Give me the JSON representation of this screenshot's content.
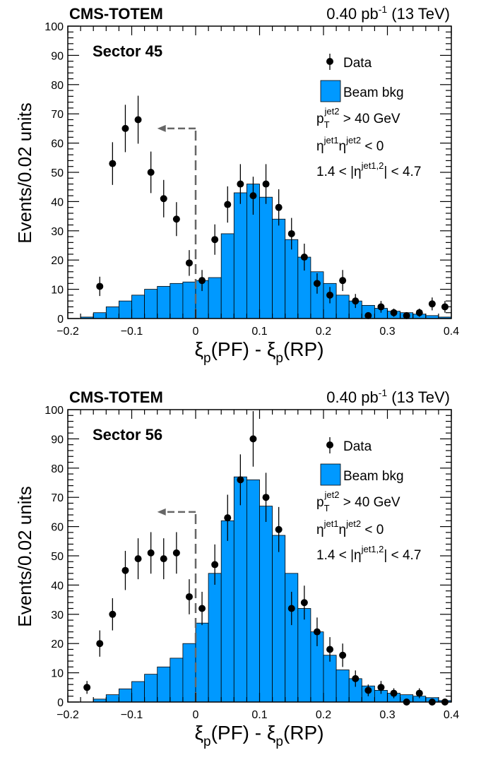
{
  "chart_data": [
    {
      "type": "bar",
      "experiment": "CMS-TOTEM",
      "lumi": "0.40 pb",
      "lumi_exp": "-1",
      "energy": "(13 TeV)",
      "sector": "Sector 45",
      "ylabel": "Events/0.02 units",
      "xlabel": {
        "xi": "ξ",
        "sub": "p",
        "pf": "(PF) - ",
        "rp": "(RP)"
      },
      "xlim": [
        -0.2,
        0.4
      ],
      "ylim": [
        0,
        100
      ],
      "x_ticks": [
        -0.2,
        -0.1,
        0,
        0.1,
        0.2,
        0.3,
        0.4
      ],
      "x_tick_labels": [
        "−0.2",
        "−0.1",
        "0",
        "0.1",
        "0.2",
        "0.3",
        "0.4"
      ],
      "y_ticks": [
        0,
        10,
        20,
        30,
        40,
        50,
        60,
        70,
        80,
        90,
        100
      ],
      "y_tick_labels": [
        "0",
        "10",
        "20",
        "30",
        "40",
        "50",
        "60",
        "70",
        "80",
        "90",
        "100"
      ],
      "legend": {
        "data": "Data",
        "bkg": "Beam bkg",
        "placement": "top-right"
      },
      "cuts": {
        "c1_base": "p",
        "c1_sub": "T",
        "c1_sup": "jet2",
        "c1_rest": " > 40 GeV",
        "c2_a": "η",
        "c2_sup1": "jet1",
        "c2_b": "η",
        "c2_sup2": "jet2",
        "c2_rest": " < 0",
        "c3_a": "1.4 < |η",
        "c3_sup": "jet1,2",
        "c3_rest": "| < 4.7"
      },
      "cut_line": 0.0,
      "arrow_to": -0.06,
      "arrow_height": 65,
      "colors": {
        "bkg": "#0099ff",
        "data": "#000000",
        "line": "#666666"
      },
      "bkg_bin_edges": [
        -0.2,
        -0.18,
        -0.16,
        -0.14,
        -0.12,
        -0.1,
        -0.08,
        -0.06,
        -0.04,
        -0.02,
        0.0,
        0.02,
        0.04,
        0.06,
        0.08,
        0.1,
        0.12,
        0.14,
        0.16,
        0.18,
        0.2,
        0.22,
        0.24,
        0.26,
        0.28,
        0.3,
        0.32,
        0.34,
        0.36,
        0.38,
        0.4
      ],
      "bkg_values": [
        0,
        0.5,
        2,
        4,
        6,
        8,
        10,
        11,
        12,
        12.5,
        13,
        14,
        29,
        43,
        46,
        41.5,
        34,
        27,
        21,
        16,
        12,
        8,
        6,
        4.5,
        3.5,
        2.5,
        2,
        1.5,
        1,
        0.5
      ],
      "data_x": [
        -0.15,
        -0.13,
        -0.11,
        -0.09,
        -0.07,
        -0.05,
        -0.03,
        -0.01,
        0.01,
        0.03,
        0.05,
        0.07,
        0.09,
        0.11,
        0.13,
        0.15,
        0.17,
        0.19,
        0.21,
        0.23,
        0.25,
        0.27,
        0.29,
        0.31,
        0.33,
        0.35,
        0.37,
        0.39
      ],
      "data_y": [
        11,
        53,
        65,
        68,
        50,
        41,
        34,
        19,
        13,
        27,
        39,
        46,
        42,
        46,
        38,
        29,
        21,
        12,
        8,
        13,
        6,
        1,
        4,
        2,
        1,
        2,
        5,
        4
      ],
      "data_err": [
        3.3,
        7.3,
        8.1,
        8.2,
        7.1,
        6.4,
        5.8,
        4.4,
        3.6,
        5.2,
        6.2,
        6.8,
        6.5,
        6.8,
        6.2,
        5.4,
        4.6,
        3.5,
        2.8,
        3.6,
        2.4,
        1.0,
        2.0,
        1.4,
        1.0,
        1.4,
        2.2,
        2.0
      ]
    },
    {
      "type": "bar",
      "experiment": "CMS-TOTEM",
      "lumi": "0.40 pb",
      "lumi_exp": "-1",
      "energy": "(13 TeV)",
      "sector": "Sector 56",
      "ylabel": "Events/0.02 units",
      "xlabel": {
        "xi": "ξ",
        "sub": "p",
        "pf": "(PF) - ",
        "rp": "(RP)"
      },
      "xlim": [
        -0.2,
        0.4
      ],
      "ylim": [
        0,
        100
      ],
      "x_ticks": [
        -0.2,
        -0.1,
        0,
        0.1,
        0.2,
        0.3,
        0.4
      ],
      "x_tick_labels": [
        "−0.2",
        "−0.1",
        "0",
        "0.1",
        "0.2",
        "0.3",
        "0.4"
      ],
      "y_ticks": [
        0,
        10,
        20,
        30,
        40,
        50,
        60,
        70,
        80,
        90,
        100
      ],
      "y_tick_labels": [
        "0",
        "10",
        "20",
        "30",
        "40",
        "50",
        "60",
        "70",
        "80",
        "90",
        "100"
      ],
      "legend": {
        "data": "Data",
        "bkg": "Beam bkg",
        "placement": "top-right"
      },
      "cuts": {
        "c1_base": "p",
        "c1_sub": "T",
        "c1_sup": "jet2",
        "c1_rest": " > 40 GeV",
        "c2_a": "η",
        "c2_sup1": "jet1",
        "c2_b": "η",
        "c2_sup2": "jet2",
        "c2_rest": " < 0",
        "c3_a": "1.4 < |η",
        "c3_sup": "jet1,2",
        "c3_rest": "| < 4.7"
      },
      "cut_line": 0.0,
      "arrow_to": -0.06,
      "arrow_height": 65,
      "colors": {
        "bkg": "#0099ff",
        "data": "#000000",
        "line": "#666666"
      },
      "bkg_bin_edges": [
        -0.2,
        -0.18,
        -0.16,
        -0.14,
        -0.12,
        -0.1,
        -0.08,
        -0.06,
        -0.04,
        -0.02,
        0.0,
        0.02,
        0.04,
        0.06,
        0.08,
        0.1,
        0.12,
        0.14,
        0.16,
        0.18,
        0.2,
        0.22,
        0.24,
        0.26,
        0.28,
        0.3,
        0.32,
        0.34,
        0.36,
        0.38,
        0.4
      ],
      "bkg_values": [
        0,
        0,
        1,
        2.5,
        4.5,
        7,
        9.5,
        12,
        15,
        20,
        27,
        44,
        62,
        77,
        76,
        67,
        57,
        44,
        32,
        24,
        16,
        11,
        8,
        5.5,
        4,
        3,
        2.5,
        2,
        1.5,
        0.5
      ],
      "data_x": [
        -0.17,
        -0.15,
        -0.13,
        -0.11,
        -0.09,
        -0.07,
        -0.05,
        -0.03,
        -0.01,
        0.01,
        0.03,
        0.05,
        0.07,
        0.09,
        0.11,
        0.13,
        0.15,
        0.17,
        0.19,
        0.21,
        0.23,
        0.25,
        0.27,
        0.29,
        0.31,
        0.33,
        0.35,
        0.37,
        0.39
      ],
      "data_y": [
        5,
        20,
        30,
        45,
        49,
        51,
        49,
        51,
        36,
        32,
        47,
        63,
        76,
        90,
        70,
        59,
        32,
        34,
        24,
        18,
        16,
        8,
        4,
        5,
        3,
        0,
        3,
        0,
        0
      ],
      "data_err": [
        2.2,
        4.5,
        5.5,
        6.7,
        7.0,
        7.1,
        7.0,
        7.1,
        6.0,
        5.7,
        6.9,
        7.9,
        8.7,
        9.5,
        8.4,
        7.7,
        5.7,
        5.8,
        4.9,
        4.2,
        4.0,
        2.8,
        2.0,
        2.2,
        1.7,
        0,
        1.7,
        0,
        0
      ]
    }
  ]
}
